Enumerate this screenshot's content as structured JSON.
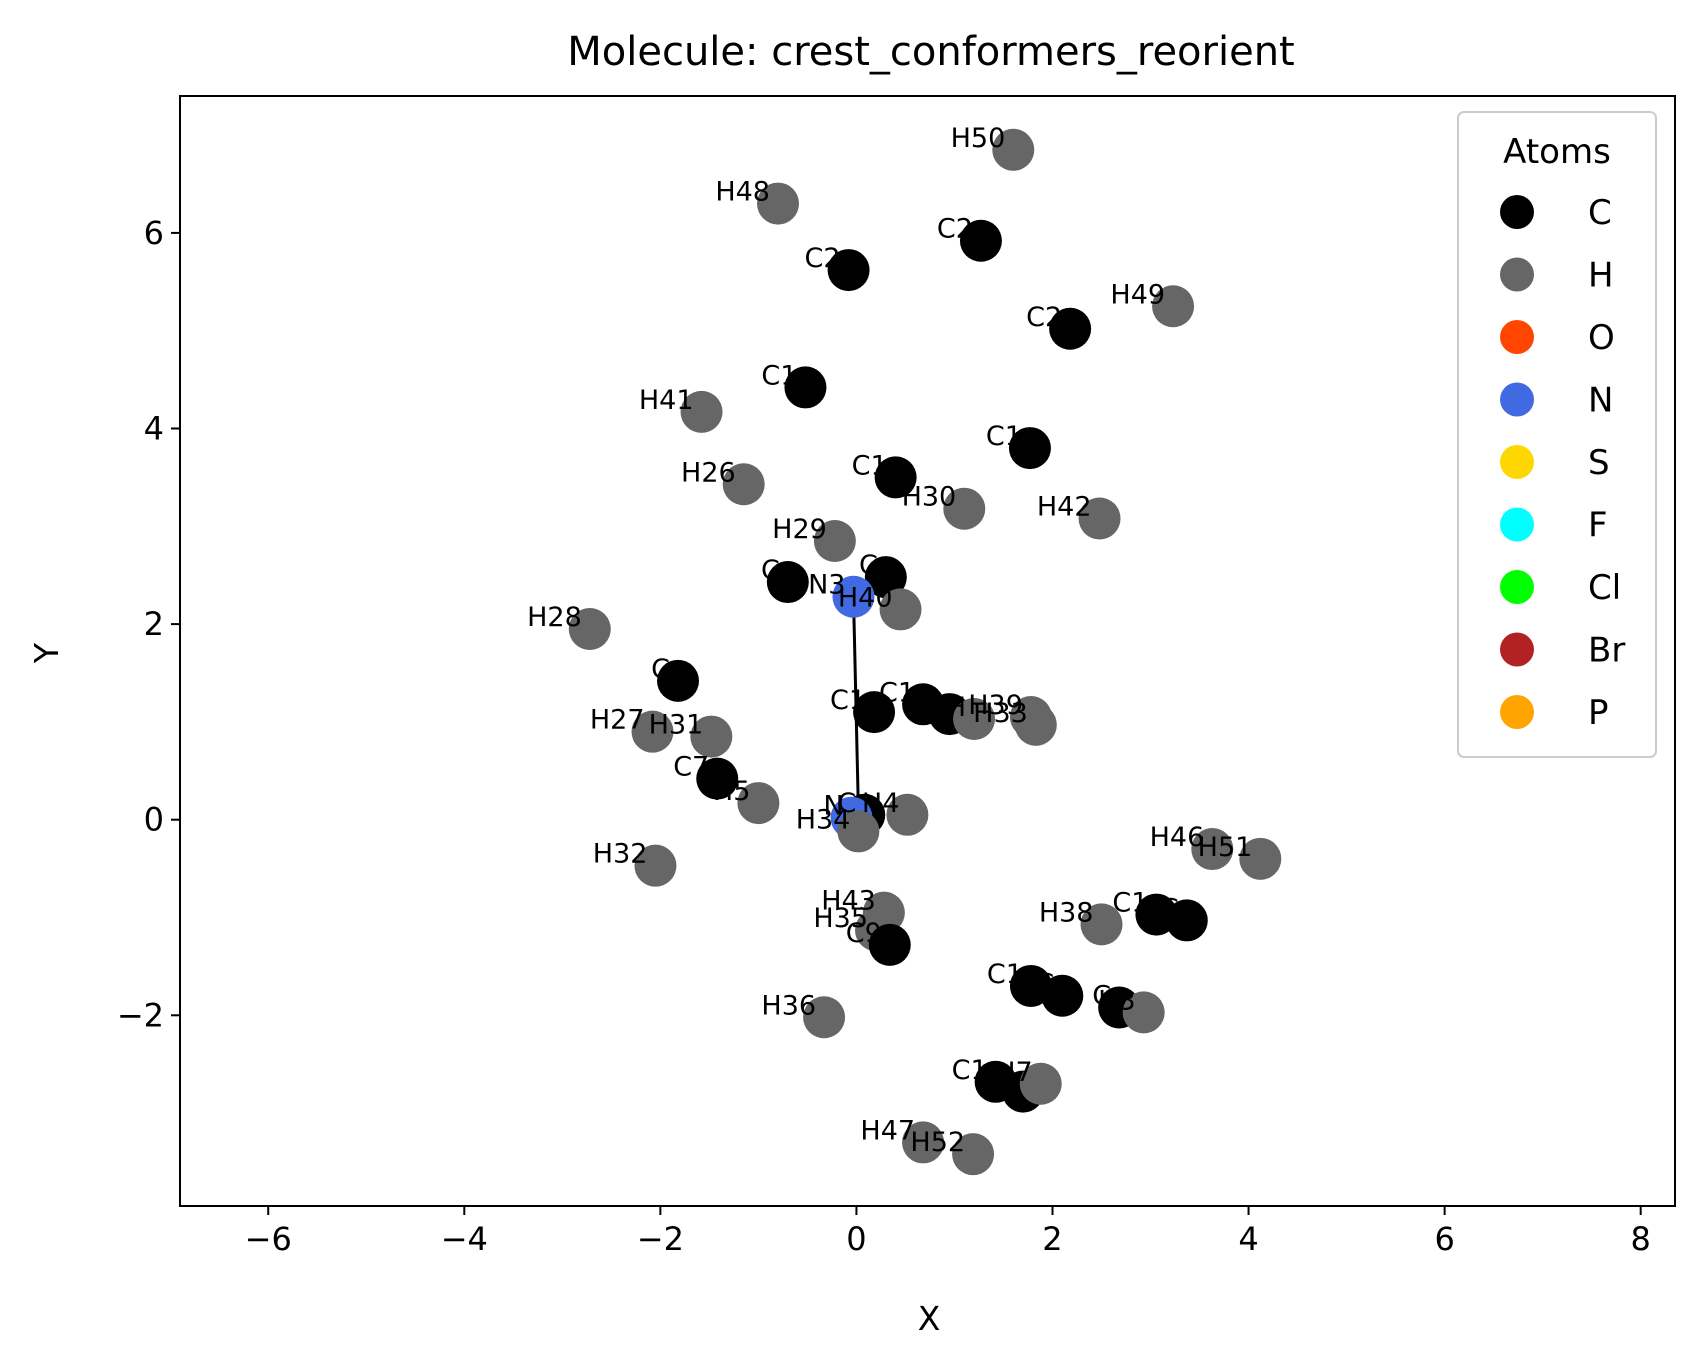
{
  "chart_data": {
    "type": "scatter",
    "title": "Molecule: crest_conformers_reorient",
    "xlabel": "X",
    "ylabel": "Y",
    "xlim": [
      -6.9,
      8.35
    ],
    "ylim": [
      -3.95,
      7.4
    ],
    "xticks": [
      -6,
      -4,
      -2,
      0,
      2,
      4,
      6,
      8
    ],
    "yticks": [
      -2,
      0,
      2,
      4,
      6
    ],
    "grid": false,
    "legend": {
      "title": "Atoms",
      "placement": "top-right",
      "entries": [
        {
          "label": "C",
          "color": "#000000"
        },
        {
          "label": "H",
          "color": "#666666"
        },
        {
          "label": "O",
          "color": "#ff4500"
        },
        {
          "label": "N",
          "color": "#4169e1"
        },
        {
          "label": "S",
          "color": "#ffd700"
        },
        {
          "label": "F",
          "color": "#00ffff"
        },
        {
          "label": "Cl",
          "color": "#00ff00"
        },
        {
          "label": "Br",
          "color": "#b22222"
        },
        {
          "label": "P",
          "color": "#ffa500"
        }
      ]
    },
    "bonds": [
      {
        "x": [
          -0.03,
          0.02
        ],
        "y": [
          2.28,
          0.1
        ]
      }
    ],
    "atoms": [
      {
        "label": "H50",
        "element": "H",
        "x": 1.6,
        "y": 6.85
      },
      {
        "label": "H48",
        "element": "H",
        "x": -0.8,
        "y": 6.3
      },
      {
        "label": "C2",
        "element": "C",
        "x": 1.27,
        "y": 5.92
      },
      {
        "label": "C2",
        "element": "C",
        "x": -0.08,
        "y": 5.62
      },
      {
        "label": "H49",
        "element": "H",
        "x": 3.23,
        "y": 5.25
      },
      {
        "label": "C2",
        "element": "C",
        "x": 2.18,
        "y": 5.02
      },
      {
        "label": "C1",
        "element": "C",
        "x": -0.52,
        "y": 4.42
      },
      {
        "label": "H41",
        "element": "H",
        "x": -1.58,
        "y": 4.17
      },
      {
        "label": "C1",
        "element": "C",
        "x": 1.77,
        "y": 3.8
      },
      {
        "label": "C1",
        "element": "C",
        "x": 0.4,
        "y": 3.5
      },
      {
        "label": "H26",
        "element": "H",
        "x": -1.15,
        "y": 3.43
      },
      {
        "label": "H30",
        "element": "H",
        "x": 1.1,
        "y": 3.18
      },
      {
        "label": "H42",
        "element": "H",
        "x": 2.48,
        "y": 3.08
      },
      {
        "label": "H29",
        "element": "H",
        "x": -0.22,
        "y": 2.85
      },
      {
        "label": "C",
        "element": "C",
        "x": -0.7,
        "y": 2.43
      },
      {
        "label": "C",
        "element": "C",
        "x": 0.3,
        "y": 2.48
      },
      {
        "label": "N3",
        "element": "N",
        "x": -0.03,
        "y": 2.28
      },
      {
        "label": "H40",
        "element": "H",
        "x": 0.45,
        "y": 2.15
      },
      {
        "label": "H28",
        "element": "H",
        "x": -2.72,
        "y": 1.95
      },
      {
        "label": "C",
        "element": "C",
        "x": -1.82,
        "y": 1.42
      },
      {
        "label": "C1",
        "element": "C",
        "x": 0.68,
        "y": 1.18
      },
      {
        "label": "C",
        "element": "C",
        "x": 0.95,
        "y": 1.08
      },
      {
        "label": "C1",
        "element": "C",
        "x": 0.18,
        "y": 1.1
      },
      {
        "label": "H39",
        "element": "H",
        "x": 1.78,
        "y": 1.05
      },
      {
        "label": "H33",
        "element": "H",
        "x": 1.83,
        "y": 0.97
      },
      {
        "label": "H",
        "element": "H",
        "x": 1.2,
        "y": 1.03
      },
      {
        "label": "H27",
        "element": "H",
        "x": -2.08,
        "y": 0.9
      },
      {
        "label": "H31",
        "element": "H",
        "x": -1.48,
        "y": 0.85
      },
      {
        "label": "C7",
        "element": "C",
        "x": -1.42,
        "y": 0.42
      },
      {
        "label": "H5",
        "element": "H",
        "x": -1.0,
        "y": 0.17
      },
      {
        "label": "C",
        "element": "C",
        "x": 0.08,
        "y": 0.05
      },
      {
        "label": "N",
        "element": "N",
        "x": -0.05,
        "y": 0.02
      },
      {
        "label": "H4",
        "element": "H",
        "x": 0.52,
        "y": 0.05
      },
      {
        "label": "H34",
        "element": "H",
        "x": 0.02,
        "y": -0.12
      },
      {
        "label": "H46",
        "element": "H",
        "x": 3.63,
        "y": -0.3
      },
      {
        "label": "H51",
        "element": "H",
        "x": 4.12,
        "y": -0.4
      },
      {
        "label": "H32",
        "element": "H",
        "x": -2.05,
        "y": -0.47
      },
      {
        "label": "H43",
        "element": "H",
        "x": 0.28,
        "y": -0.95
      },
      {
        "label": "C1",
        "element": "C",
        "x": 3.06,
        "y": -0.97
      },
      {
        "label": "C",
        "element": "C",
        "x": 3.37,
        "y": -1.03
      },
      {
        "label": "H38",
        "element": "H",
        "x": 2.5,
        "y": -1.07
      },
      {
        "label": "H35",
        "element": "H",
        "x": 0.2,
        "y": -1.13
      },
      {
        "label": "C9",
        "element": "C",
        "x": 0.34,
        "y": -1.28
      },
      {
        "label": "C1",
        "element": "C",
        "x": 1.78,
        "y": -1.7
      },
      {
        "label": "C",
        "element": "C",
        "x": 2.1,
        "y": -1.8
      },
      {
        "label": "C",
        "element": "C",
        "x": 2.68,
        "y": -1.92
      },
      {
        "label": "H3",
        "element": "H",
        "x": 2.93,
        "y": -1.97
      },
      {
        "label": "H36",
        "element": "H",
        "x": -0.33,
        "y": -2.02
      },
      {
        "label": "C1",
        "element": "C",
        "x": 1.42,
        "y": -2.68
      },
      {
        "label": "C",
        "element": "C",
        "x": 1.7,
        "y": -2.78
      },
      {
        "label": "H7",
        "element": "H",
        "x": 1.88,
        "y": -2.7
      },
      {
        "label": "H47",
        "element": "H",
        "x": 0.68,
        "y": -3.3
      },
      {
        "label": "H52",
        "element": "H",
        "x": 1.19,
        "y": -3.42
      }
    ]
  }
}
